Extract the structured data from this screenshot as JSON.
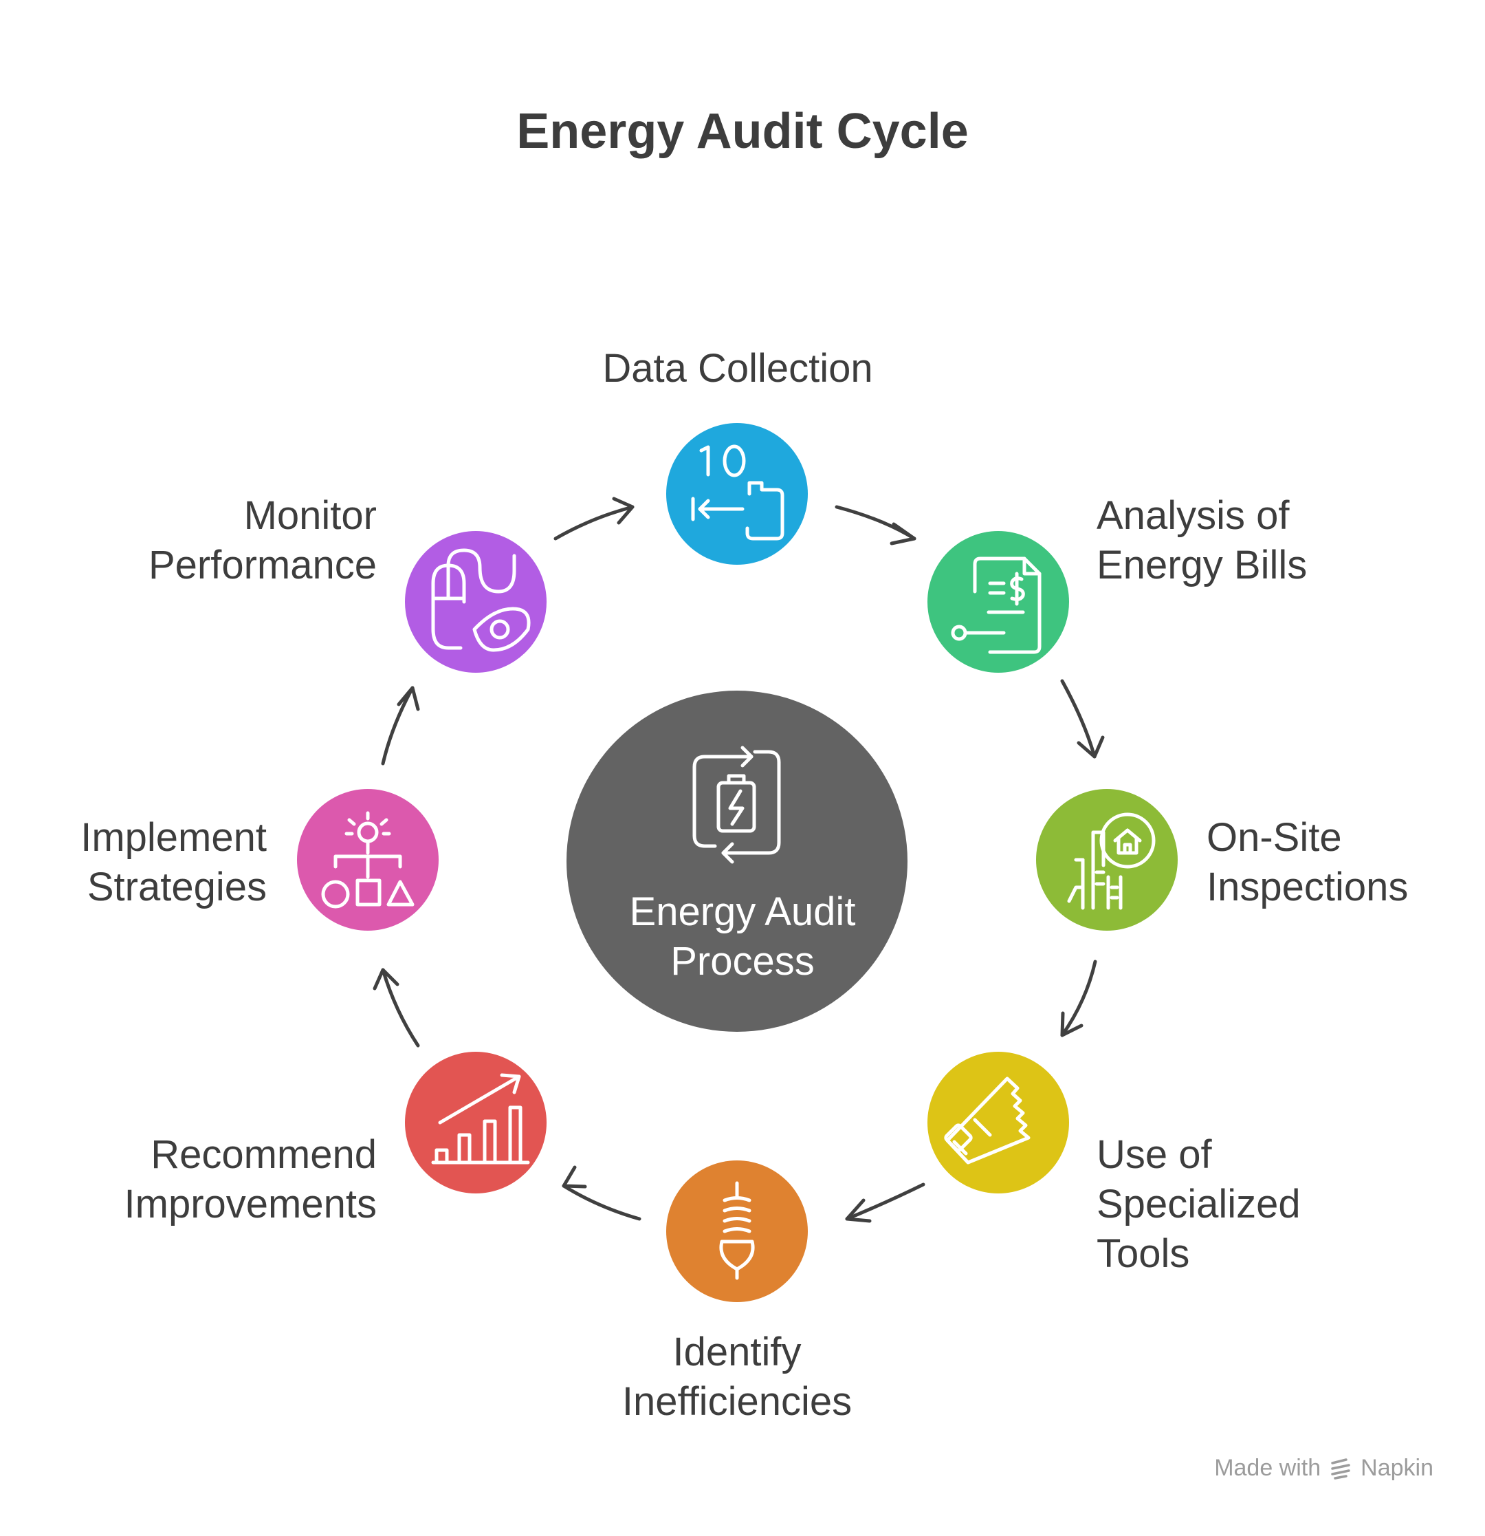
{
  "title": "Energy Audit Cycle",
  "center": {
    "label": "Energy Audit\nProcess",
    "color": "#636363",
    "icon": "battery-refresh-icon"
  },
  "steps": [
    {
      "label": "Data Collection",
      "color": "#1fa8dd",
      "icon": "data-transfer-icon"
    },
    {
      "label": "Analysis of\nEnergy Bills",
      "color": "#3ec47f",
      "icon": "bill-document-icon"
    },
    {
      "label": "On-Site\nInspections",
      "color": "#8dbb37",
      "icon": "building-inspection-icon"
    },
    {
      "label": "Use of\nSpecialized\nTools",
      "color": "#ddc416",
      "icon": "saw-tool-icon"
    },
    {
      "label": "Identify\nInefficiencies",
      "color": "#df8230",
      "icon": "light-bulb-icon"
    },
    {
      "label": "Recommend\nImprovements",
      "color": "#e25552",
      "icon": "growth-chart-icon"
    },
    {
      "label": "Implement\nStrategies",
      "color": "#dc59ad",
      "icon": "strategy-shapes-icon"
    },
    {
      "label": "Monitor\nPerformance",
      "color": "#b25de4",
      "icon": "mouse-eye-icon"
    }
  ],
  "footer": {
    "prefix": "Made with",
    "brand": "Napkin",
    "icon": "napkin-logo-icon"
  }
}
